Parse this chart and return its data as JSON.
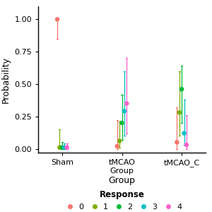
{
  "groups": [
    "Sham",
    "tMCAO\nGroup",
    "tMCAO_C"
  ],
  "group_keys": [
    "Sham",
    "tMCAO",
    "tMCAO_C"
  ],
  "x_positions": [
    0.5,
    1.5,
    2.5
  ],
  "responses": [
    0,
    1,
    2,
    3,
    4
  ],
  "colors": {
    "0": "#F8766D",
    "1": "#7CAE00",
    "2": "#00BA38",
    "3": "#00BFC4",
    "4": "#FF61CC"
  },
  "data": {
    "Sham": {
      "0": {
        "mean": 1.0,
        "low": 0.85,
        "high": 1.0
      },
      "1": {
        "mean": 0.01,
        "low": 0.0,
        "high": 0.15
      },
      "2": {
        "mean": 0.01,
        "low": 0.0,
        "high": 0.05
      },
      "3": {
        "mean": 0.01,
        "low": 0.0,
        "high": 0.04
      },
      "4": {
        "mean": 0.01,
        "low": 0.0,
        "high": 0.04
      }
    },
    "tMCAO": {
      "0": {
        "mean": 0.02,
        "low": 0.0,
        "high": 0.22
      },
      "1": {
        "mean": 0.06,
        "low": 0.01,
        "high": 0.21
      },
      "2": {
        "mean": 0.2,
        "low": 0.07,
        "high": 0.42
      },
      "3": {
        "mean": 0.29,
        "low": 0.1,
        "high": 0.6
      },
      "4": {
        "mean": 0.35,
        "low": 0.12,
        "high": 0.7
      }
    },
    "tMCAO_C": {
      "0": {
        "mean": 0.05,
        "low": 0.0,
        "high": 0.32
      },
      "1": {
        "mean": 0.28,
        "low": 0.1,
        "high": 0.6
      },
      "2": {
        "mean": 0.46,
        "low": 0.2,
        "high": 0.64
      },
      "3": {
        "mean": 0.12,
        "low": 0.03,
        "high": 0.38
      },
      "4": {
        "mean": 0.03,
        "low": 0.0,
        "high": 0.26
      }
    }
  },
  "offsets": {
    "0": -0.08,
    "1": -0.04,
    "2": 0.0,
    "3": 0.04,
    "4": 0.08
  },
  "ylabel": "Probability",
  "xlabel": "Group",
  "ylim": [
    -0.03,
    1.1
  ],
  "xlim": [
    0.1,
    2.9
  ],
  "legend_title": "Response",
  "background_color": "#FFFFFF"
}
